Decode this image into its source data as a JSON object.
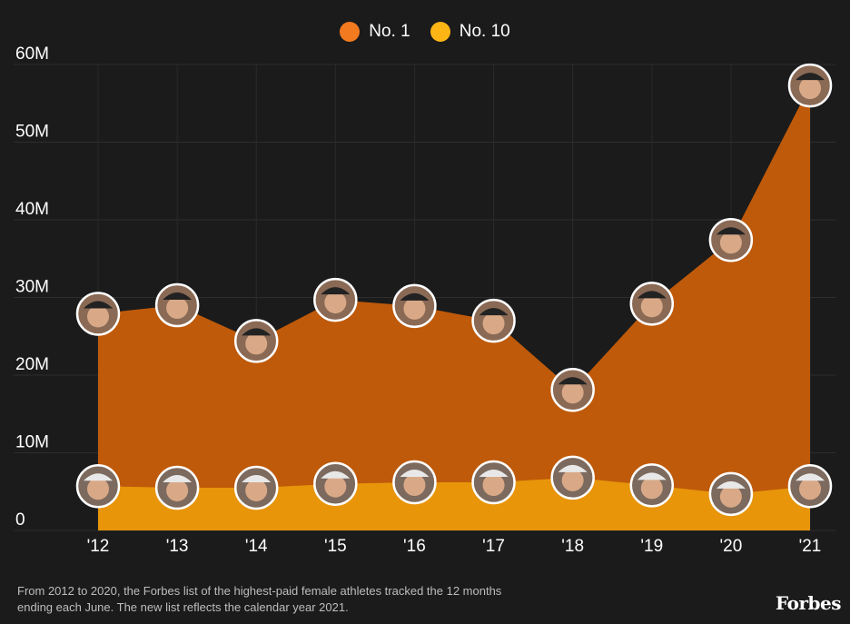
{
  "chart_data": {
    "type": "area",
    "categories": [
      "'12",
      "'13",
      "'14",
      "'15",
      "'16",
      "'17",
      "'18",
      "'19",
      "'20",
      "'21"
    ],
    "series": [
      {
        "name": "No. 1",
        "color": "#f47a20",
        "fill": "#bf5a0a",
        "values": [
          27.9,
          29.0,
          24.4,
          29.7,
          28.9,
          27.0,
          18.1,
          29.2,
          37.4,
          57.3
        ]
      },
      {
        "name": "No. 10",
        "color": "#fdb515",
        "fill": "#e8950a",
        "values": [
          5.7,
          5.5,
          5.5,
          6.0,
          6.2,
          6.2,
          6.8,
          5.8,
          4.7,
          5.7
        ]
      }
    ],
    "yticks": [
      "0",
      "10M",
      "20M",
      "30M",
      "40M",
      "50M",
      "60M"
    ],
    "ylim": [
      0,
      60
    ],
    "grid": true,
    "legend": "top-center"
  },
  "footnote": "From 2012 to 2020, the Forbes list of the highest-paid female athletes tracked the 12 months ending each June. The new list reflects the calendar year 2021.",
  "logo": "Forbes"
}
